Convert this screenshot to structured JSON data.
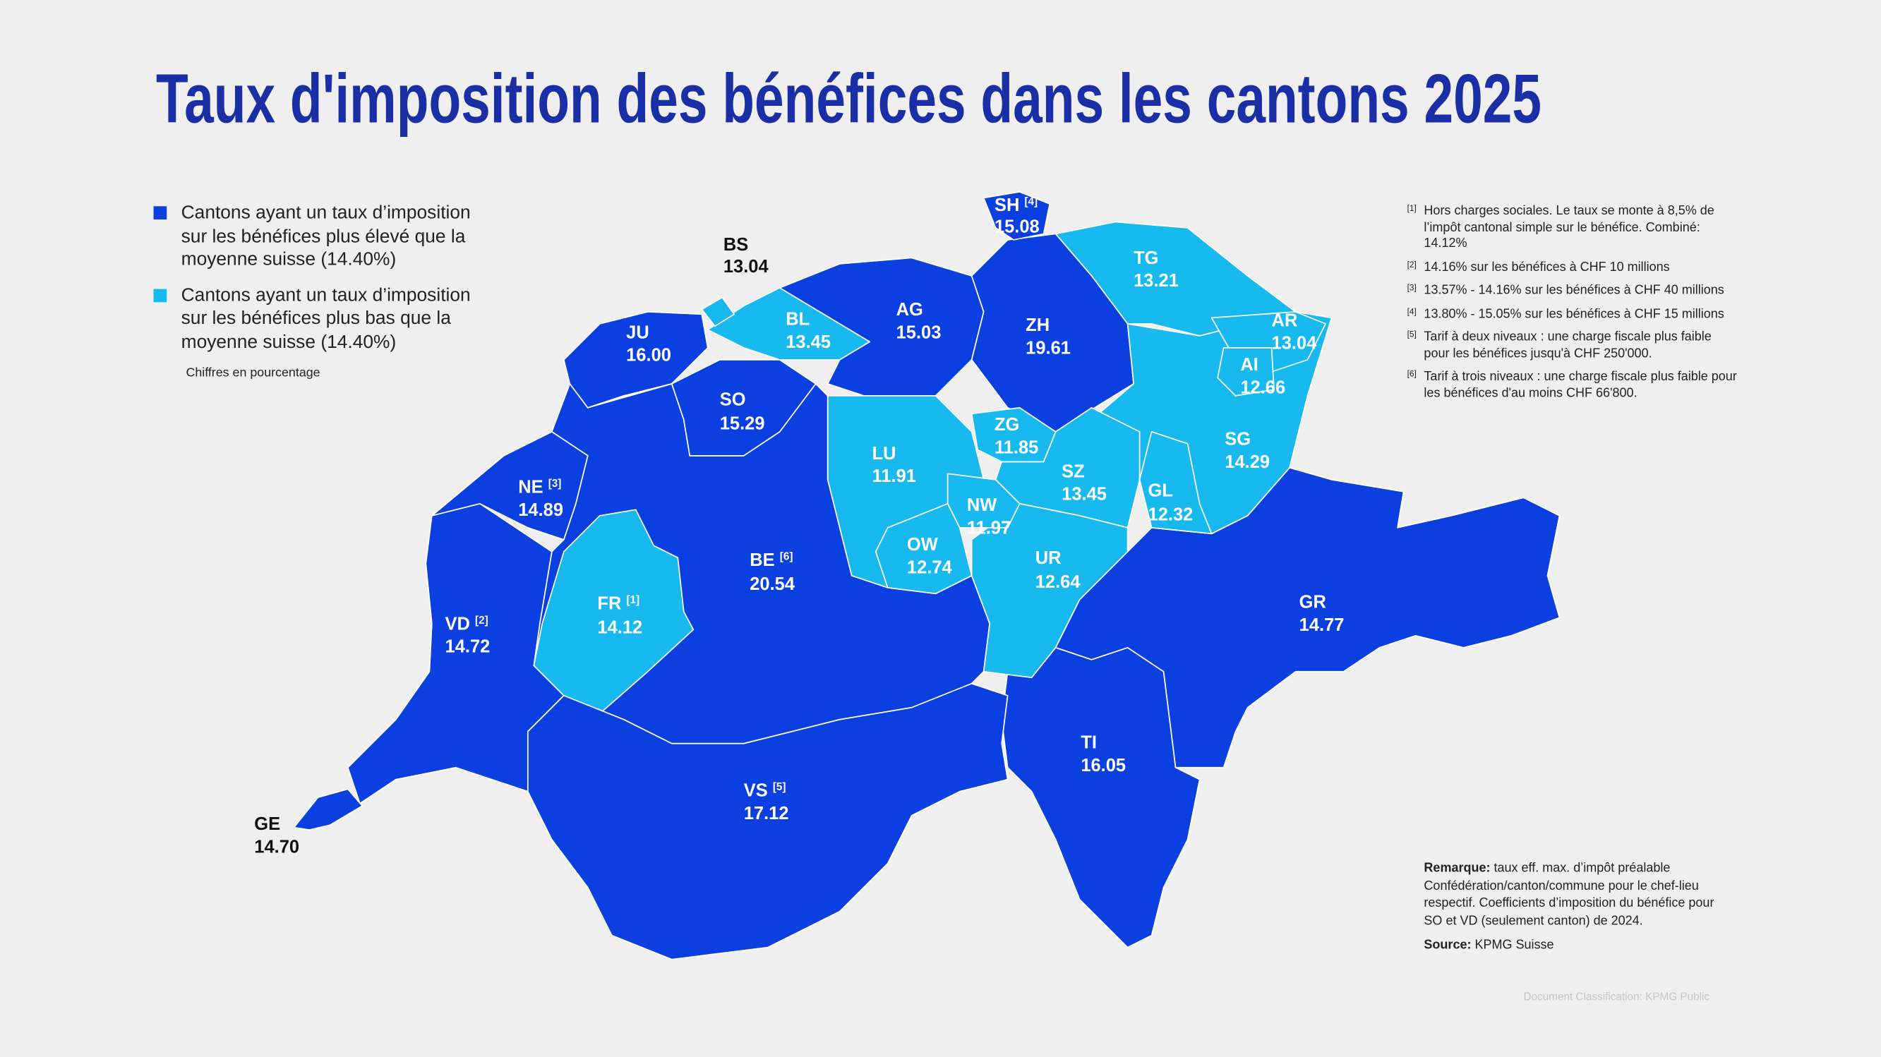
{
  "title": "Taux d'imposition des bénéfices dans les cantons 2025",
  "legend": [
    {
      "text": "Cantons ayant un taux d’imposition sur les bénéfices plus élevé que la moyenne suisse (14.40%)",
      "color": "#0b3fe0"
    },
    {
      "text": "Cantons ayant un taux d’imposition sur les bénéfices plus bas que la moyenne suisse (14.40%)",
      "color": "#17b9ef"
    }
  ],
  "unit_note": "Chiffres en pourcentage",
  "cantons": [
    {
      "code": "BE",
      "value": "20.54",
      "footnote": "[6]",
      "color": "#0b3fe0"
    },
    {
      "code": "FR",
      "value": "14.12",
      "footnote": "[1]",
      "color": "#17b9ef"
    },
    {
      "code": "VD",
      "value": "14.72",
      "footnote": "[2]",
      "color": "#0b3fe0"
    },
    {
      "code": "GE",
      "value": "14.70",
      "color": "#0b3fe0"
    },
    {
      "code": "NE",
      "value": "14.89",
      "footnote": "[3]",
      "color": "#0b3fe0"
    },
    {
      "code": "JU",
      "value": "16.00",
      "color": "#0b3fe0"
    },
    {
      "code": "BS",
      "value": "13.04",
      "color": "#17b9ef"
    },
    {
      "code": "BL",
      "value": "13.45",
      "color": "#17b9ef"
    },
    {
      "code": "SO",
      "value": "15.29",
      "color": "#0b3fe0"
    },
    {
      "code": "AG",
      "value": "15.03",
      "color": "#0b3fe0"
    },
    {
      "code": "SH",
      "value": "15.08",
      "footnote": "[4]",
      "color": "#0b3fe0"
    },
    {
      "code": "ZH",
      "value": "19.61",
      "color": "#0b3fe0"
    },
    {
      "code": "TG",
      "value": "13.21",
      "color": "#17b9ef"
    },
    {
      "code": "AR",
      "value": "13.04",
      "color": "#17b9ef"
    },
    {
      "code": "AI",
      "value": "12.66",
      "color": "#17b9ef"
    },
    {
      "code": "SG",
      "value": "14.29",
      "color": "#17b9ef"
    },
    {
      "code": "LU",
      "value": "11.91",
      "color": "#17b9ef"
    },
    {
      "code": "ZG",
      "value": "11.85",
      "color": "#17b9ef"
    },
    {
      "code": "SZ",
      "value": "13.45",
      "color": "#17b9ef"
    },
    {
      "code": "NW",
      "value": "11.97",
      "color": "#17b9ef"
    },
    {
      "code": "OW",
      "value": "12.74",
      "color": "#17b9ef"
    },
    {
      "code": "UR",
      "value": "12.64",
      "color": "#17b9ef"
    },
    {
      "code": "GL",
      "value": "12.32",
      "color": "#17b9ef"
    },
    {
      "code": "GR",
      "value": "14.77",
      "color": "#0b3fe0"
    },
    {
      "code": "TI",
      "value": "16.05",
      "color": "#0b3fe0"
    },
    {
      "code": "VS",
      "value": "17.12",
      "footnote": "[5]",
      "color": "#0b3fe0"
    }
  ],
  "footnotes": [
    {
      "marker": "[1]",
      "text": "Hors charges sociales. Le taux se monte à 8,5% de l’impôt cantonal simple sur le bénéfice. Combiné: 14.12%"
    },
    {
      "marker": "[2]",
      "text": "14.16% sur les bénéfices à CHF 10 millions"
    },
    {
      "marker": "[3]",
      "text": "13.57% - 14.16% sur les bénéfices à CHF 40 millions"
    },
    {
      "marker": "[4]",
      "text": "13.80% - 15.05% sur les bénéfices à CHF 15 millions"
    },
    {
      "marker": "[5]",
      "text": "Tarif à deux niveaux : une charge fiscale plus faible pour les bénéfices jusqu'à CHF 250'000."
    },
    {
      "marker": "[6]",
      "text": "Tarif à trois niveaux : une charge fiscale plus faible pour les bénéfices d'au moins CHF 66'800."
    }
  ],
  "remark": {
    "label": "Remarque:",
    "text": "taux eff. max. d’impôt préalable Confédération/canton/commune pour le chef-lieu respectif. Coefficients d’imposition du bénéfice pour SO et VD (seulement canton) de 2024."
  },
  "source": {
    "label": "Source:",
    "text": "KPMG Suisse"
  },
  "classification": "Document Classification: KPMG Public"
}
